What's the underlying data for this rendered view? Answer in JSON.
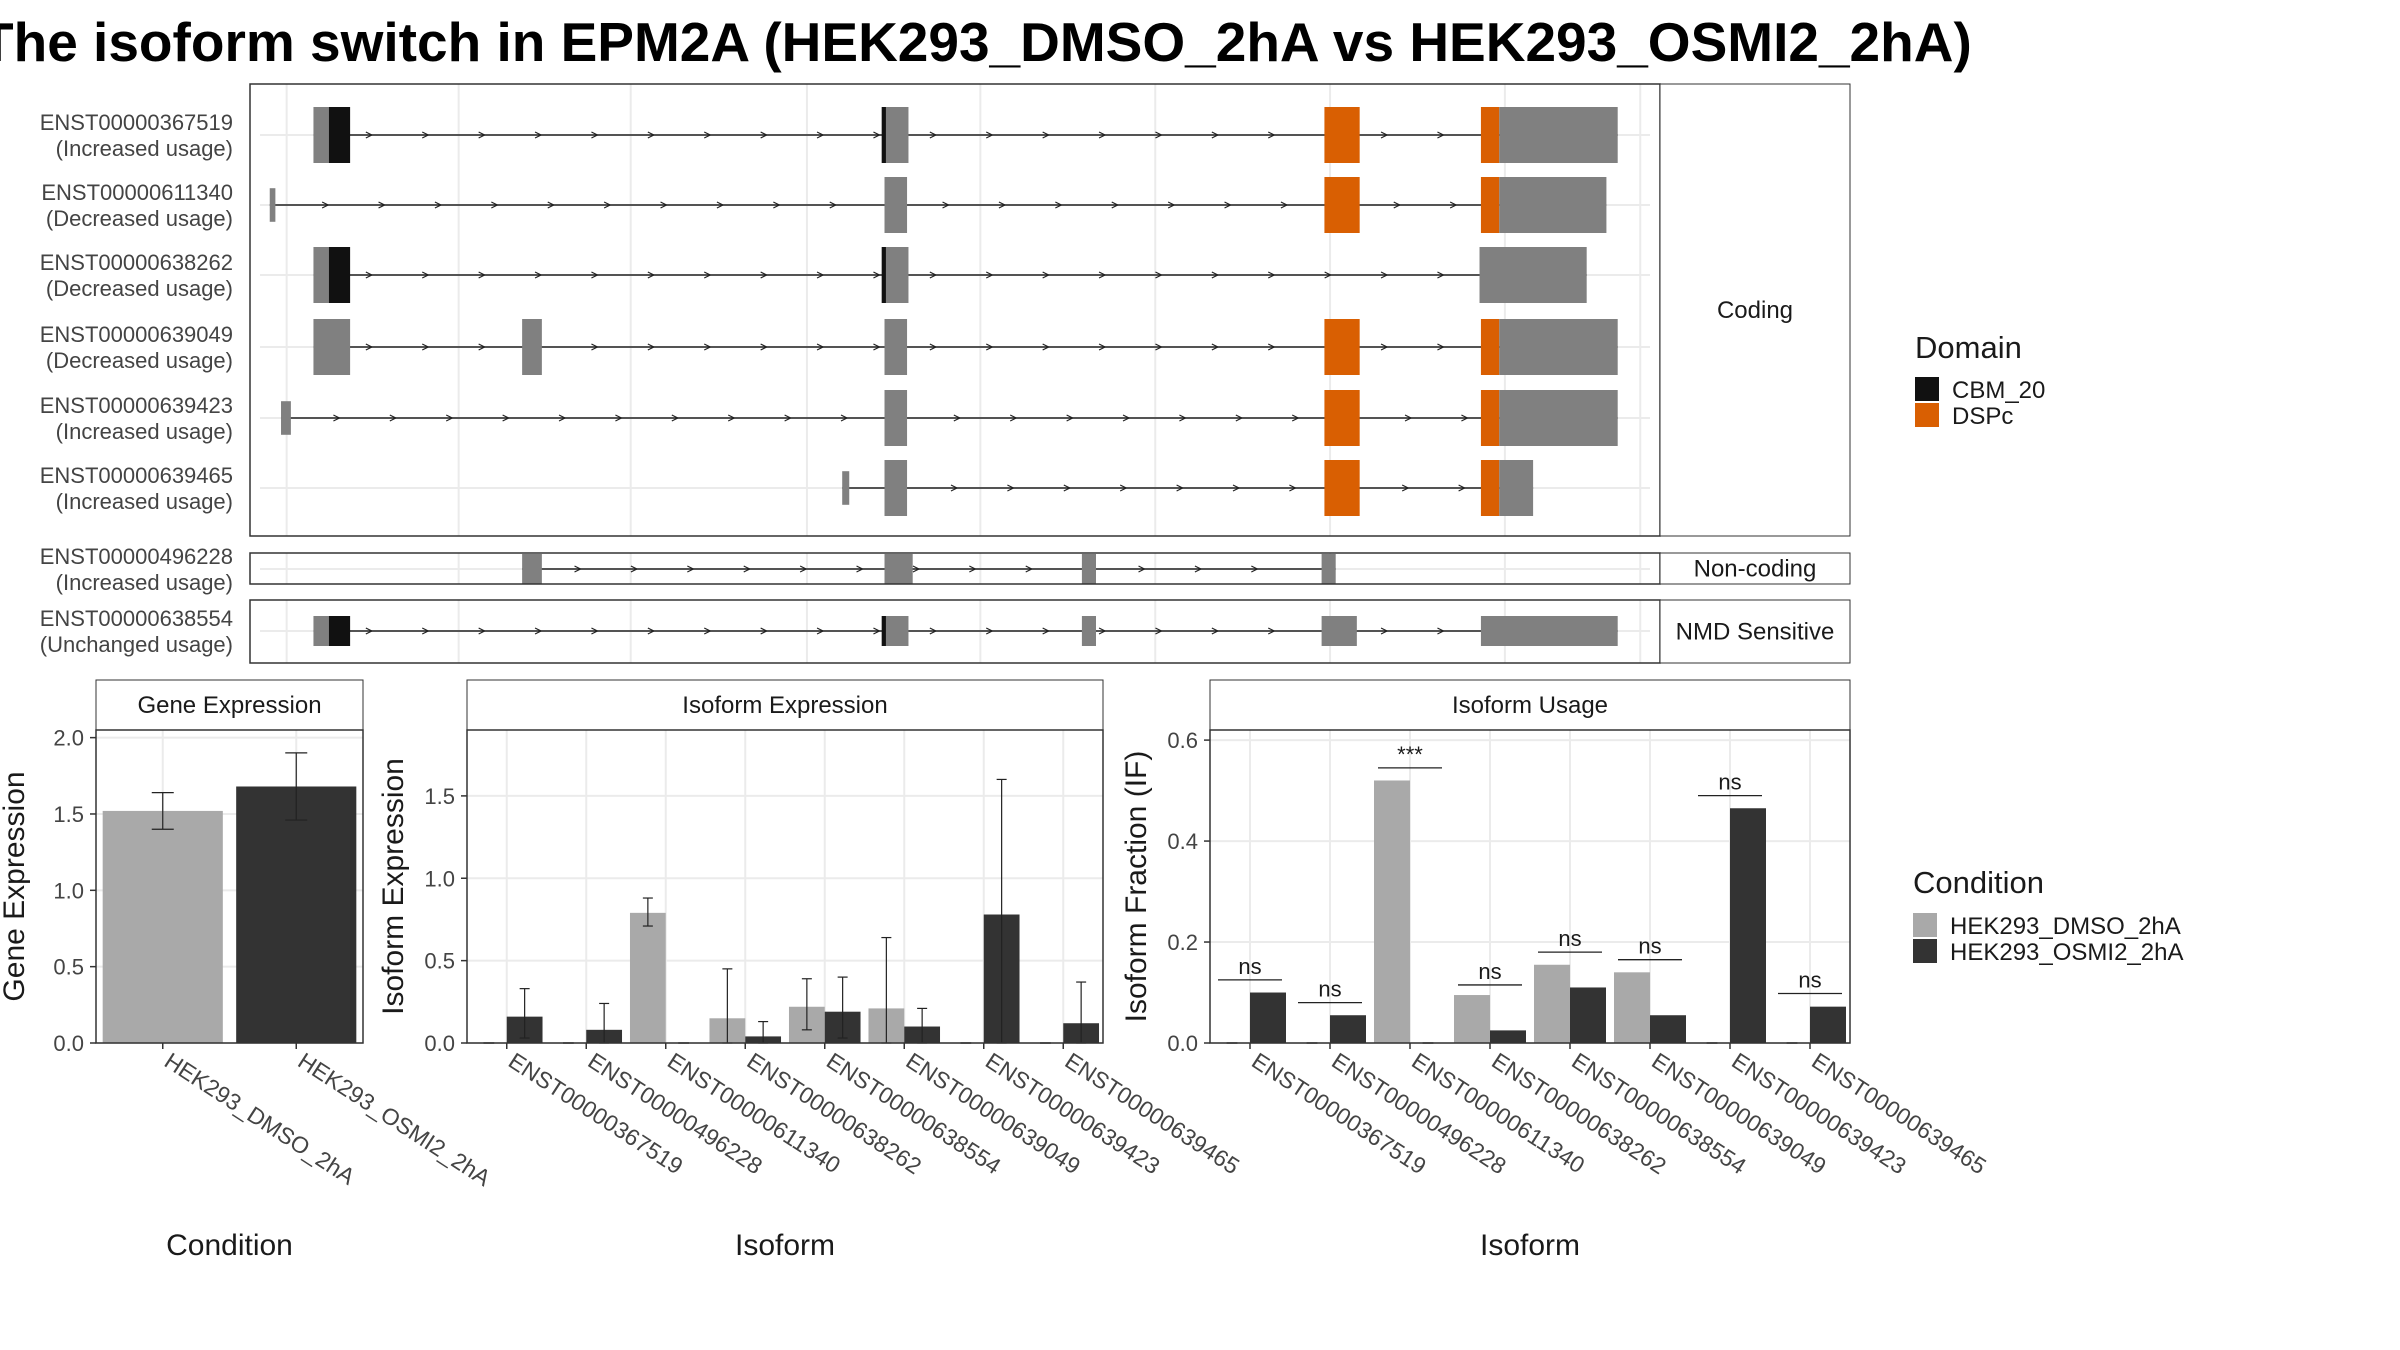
{
  "title": "The isoform switch in EPM2A (HEK293_DMSO_2hA vs HEK293_OSMI2_2hA)",
  "colors": {
    "exon": "#808080",
    "cbm20": "#111111",
    "dspc": "#d95f02",
    "dmso": "#a9a9a9",
    "osmi2": "#333333",
    "grid": "#ebebeb",
    "strip_bg": "#ffffff"
  },
  "legends": {
    "domain": {
      "title": "Domain",
      "items": [
        {
          "label": "CBM_20",
          "color": "#111111"
        },
        {
          "label": "DSPc",
          "color": "#d95f02"
        }
      ]
    },
    "condition": {
      "title": "Condition",
      "items": [
        {
          "label": "HEK293_DMSO_2hA",
          "color": "#a9a9a9"
        },
        {
          "label": "HEK293_OSMI2_2hA",
          "color": "#333333"
        }
      ]
    }
  },
  "transcript_panel": {
    "groups": [
      {
        "label": "Coding",
        "transcripts": [
          {
            "id": "ENST00000367519",
            "status": "(Increased usage)",
            "exons": [
              [
                0.045,
                0.069,
                "exon"
              ],
              [
                0.056,
                0.071,
                "cbm20"
              ],
              [
                0.45,
                0.467,
                "exon"
              ],
              [
                0.448,
                0.451,
                "cbm20"
              ],
              [
                0.762,
                0.787,
                "dspc"
              ],
              [
                0.873,
                0.886,
                "dspc"
              ],
              [
                0.886,
                0.97,
                "exon"
              ]
            ]
          },
          {
            "id": "ENST00000611340",
            "status": "(Decreased usage)",
            "exons": [
              [
                0.014,
                0.018,
                "exon"
              ],
              [
                0.45,
                0.466,
                "exon"
              ],
              [
                0.762,
                0.787,
                "dspc"
              ],
              [
                0.873,
                0.886,
                "dspc"
              ],
              [
                0.886,
                0.962,
                "exon"
              ]
            ]
          },
          {
            "id": "ENST00000638262",
            "status": "(Decreased usage)",
            "exons": [
              [
                0.045,
                0.069,
                "exon"
              ],
              [
                0.056,
                0.071,
                "cbm20"
              ],
              [
                0.45,
                0.467,
                "exon"
              ],
              [
                0.448,
                0.451,
                "cbm20"
              ],
              [
                0.872,
                0.948,
                "exon"
              ]
            ]
          },
          {
            "id": "ENST00000639049",
            "status": "(Decreased usage)",
            "exons": [
              [
                0.045,
                0.071,
                "exon"
              ],
              [
                0.193,
                0.207,
                "exon"
              ],
              [
                0.45,
                0.466,
                "exon"
              ],
              [
                0.762,
                0.787,
                "dspc"
              ],
              [
                0.873,
                0.886,
                "dspc"
              ],
              [
                0.886,
                0.97,
                "exon"
              ]
            ]
          },
          {
            "id": "ENST00000639423",
            "status": "(Increased usage)",
            "exons": [
              [
                0.022,
                0.029,
                "exon"
              ],
              [
                0.45,
                0.466,
                "exon"
              ],
              [
                0.762,
                0.787,
                "dspc"
              ],
              [
                0.873,
                0.886,
                "dspc"
              ],
              [
                0.886,
                0.97,
                "exon"
              ]
            ]
          },
          {
            "id": "ENST00000639465",
            "status": "(Increased usage)",
            "exons": [
              [
                0.42,
                0.425,
                "exon"
              ],
              [
                0.45,
                0.466,
                "exon"
              ],
              [
                0.762,
                0.787,
                "dspc"
              ],
              [
                0.873,
                0.886,
                "dspc"
              ],
              [
                0.886,
                0.91,
                "exon"
              ]
            ]
          }
        ]
      },
      {
        "label": "Non-coding",
        "transcripts": [
          {
            "id": "ENST00000496228",
            "status": "(Increased usage)",
            "exons": [
              [
                0.193,
                0.207,
                "exon"
              ],
              [
                0.45,
                0.47,
                "exon"
              ],
              [
                0.59,
                0.6,
                "exon"
              ],
              [
                0.76,
                0.77,
                "exon"
              ]
            ]
          }
        ]
      },
      {
        "label": "NMD Sensitive",
        "transcripts": [
          {
            "id": "ENST00000638554",
            "status": "(Unchanged usage)",
            "exons": [
              [
                0.045,
                0.069,
                "exon"
              ],
              [
                0.056,
                0.071,
                "cbm20"
              ],
              [
                0.45,
                0.467,
                "exon"
              ],
              [
                0.448,
                0.451,
                "cbm20"
              ],
              [
                0.59,
                0.6,
                "exon"
              ],
              [
                0.76,
                0.785,
                "exon"
              ],
              [
                0.873,
                0.97,
                "exon"
              ]
            ]
          }
        ]
      }
    ]
  },
  "chart_data": [
    {
      "type": "bar",
      "title": "Gene Expression",
      "xlabel": "Condition",
      "ylabel": "Gene Expression",
      "ylim": [
        0,
        2.05
      ],
      "yticks": [
        "0.0",
        "0.5",
        "1.0",
        "1.5",
        "2.0"
      ],
      "categories": [
        "HEK293_DMSO_2hA",
        "HEK293_OSMI2_2hA"
      ],
      "values": [
        1.52,
        1.68
      ],
      "errors": [
        [
          1.4,
          1.64
        ],
        [
          1.46,
          1.9
        ]
      ]
    },
    {
      "type": "bar",
      "title": "Isoform Expression",
      "xlabel": "Isoform",
      "ylabel": "Isoform Expression",
      "ylim": [
        0,
        1.9
      ],
      "yticks": [
        "0.0",
        "0.5",
        "1.0",
        "1.5"
      ],
      "categories": [
        "ENST00000367519",
        "ENST00000496228",
        "ENST00000611340",
        "ENST00000638262",
        "ENST00000638554",
        "ENST00000639049",
        "ENST00000639423",
        "ENST00000639465"
      ],
      "series": [
        {
          "name": "HEK293_DMSO_2hA",
          "values": [
            0.0,
            0.0,
            0.79,
            0.15,
            0.22,
            0.21,
            0.0,
            0.0
          ],
          "errors": [
            [
              0,
              0
            ],
            [
              0,
              0
            ],
            [
              0.71,
              0.88
            ],
            [
              0,
              0.45
            ],
            [
              0.08,
              0.39
            ],
            [
              0,
              0.64
            ],
            [
              0,
              0
            ],
            [
              0,
              0
            ]
          ]
        },
        {
          "name": "HEK293_OSMI2_2hA",
          "values": [
            0.16,
            0.08,
            0.0,
            0.04,
            0.19,
            0.1,
            0.78,
            0.12
          ],
          "errors": [
            [
              0.03,
              0.33
            ],
            [
              0,
              0.24
            ],
            [
              0,
              0
            ],
            [
              0,
              0.13
            ],
            [
              0.03,
              0.4
            ],
            [
              0,
              0.21
            ],
            [
              0,
              1.6
            ],
            [
              0,
              0.37
            ]
          ]
        }
      ]
    },
    {
      "type": "bar",
      "title": "Isoform Usage",
      "xlabel": "Isoform",
      "ylabel": "Isoform Fraction (IF)",
      "ylim": [
        0,
        0.62
      ],
      "yticks": [
        "0.0",
        "0.2",
        "0.4",
        "0.6"
      ],
      "categories": [
        "ENST00000367519",
        "ENST00000496228",
        "ENST00000611340",
        "ENST00000638262",
        "ENST00000638554",
        "ENST00000639049",
        "ENST00000639423",
        "ENST00000639465"
      ],
      "series": [
        {
          "name": "HEK293_DMSO_2hA",
          "values": [
            0.0,
            0.0,
            0.52,
            0.095,
            0.155,
            0.14,
            0.0,
            0.0
          ]
        },
        {
          "name": "HEK293_OSMI2_2hA",
          "values": [
            0.1,
            0.055,
            0.0,
            0.025,
            0.11,
            0.055,
            0.465,
            0.072
          ]
        }
      ],
      "significance": [
        "ns",
        "ns",
        "***",
        "ns",
        "ns",
        "ns",
        "ns",
        "ns"
      ],
      "sig_y": [
        0.125,
        0.08,
        0.545,
        0.115,
        0.18,
        0.165,
        0.49,
        0.098
      ]
    }
  ]
}
